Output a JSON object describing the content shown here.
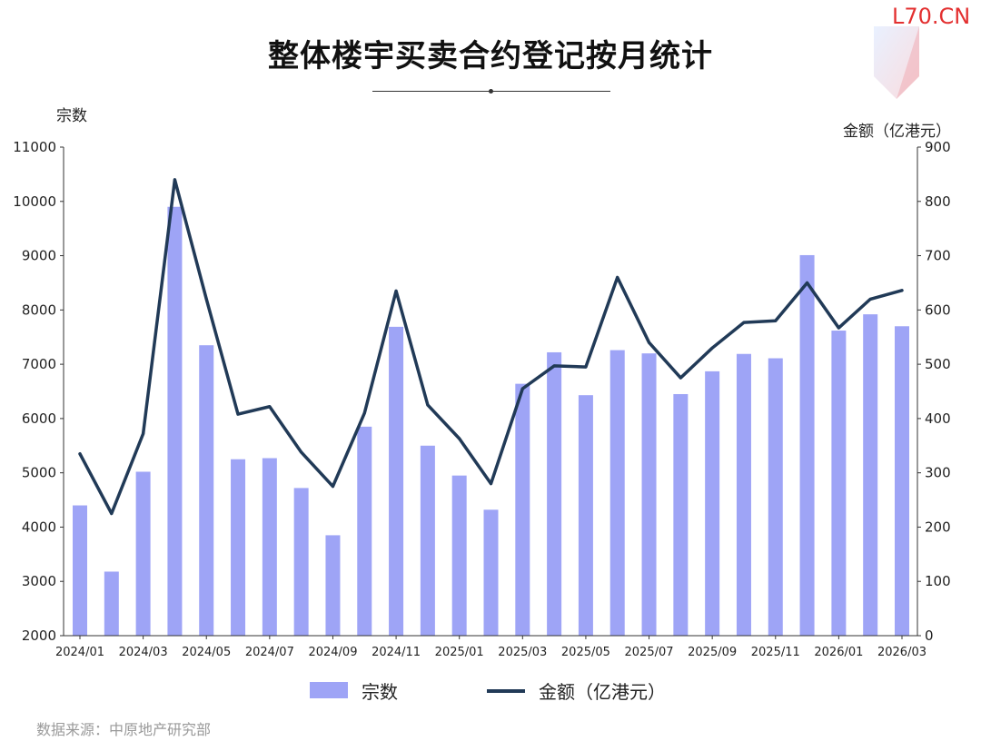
{
  "logo": {
    "text": "L70.CN"
  },
  "chart_data": {
    "type": "bar+line",
    "title": "整体楼宇买卖合约登记按月统计",
    "y_left_label": "宗数",
    "y_right_label": "金额（亿港元）",
    "y_left_range": [
      2000,
      11000
    ],
    "y_right_range": [
      0,
      900
    ],
    "y_left_ticks": [
      "11000",
      "10000",
      "9000",
      "8000",
      "7000",
      "6000",
      "5000",
      "4000",
      "3000",
      "2000"
    ],
    "y_right_ticks": [
      "900",
      "800",
      "700",
      "600",
      "500",
      "400",
      "300",
      "200",
      "100",
      "0"
    ],
    "x_tick_labels": [
      "2024/01",
      "2024/03",
      "2024/05",
      "2024/07",
      "2024/09",
      "2024/11",
      "2025/01",
      "2025/03",
      "2025/05",
      "2025/07",
      "2025/09",
      "2025/11",
      "2026/01",
      "2026/03"
    ],
    "categories": [
      "2024/01",
      "2024/02",
      "2024/03",
      "2024/04",
      "2024/05",
      "2024/06",
      "2024/07",
      "2024/08",
      "2024/09",
      "2024/10",
      "2024/11",
      "2024/12",
      "2025/01",
      "2025/02",
      "2025/03",
      "2025/04",
      "2025/05",
      "2025/06",
      "2025/07",
      "2025/08",
      "2025/09",
      "2025/10",
      "2025/11",
      "2025/12",
      "2026/01",
      "2026/02",
      "2026/03"
    ],
    "series": [
      {
        "name": "宗数",
        "type": "bar",
        "axis": "left",
        "values": [
          4400,
          3180,
          5020,
          9900,
          7350,
          5250,
          5270,
          4720,
          3850,
          5850,
          7690,
          5500,
          4950,
          4320,
          6640,
          7220,
          6430,
          7260,
          7200,
          6450,
          6870,
          7190,
          7110,
          9010,
          7620,
          7920,
          7700
        ]
      },
      {
        "name": "金额（亿港元）",
        "type": "line",
        "axis": "right",
        "values": [
          335,
          225,
          372,
          840,
          620,
          408,
          422,
          338,
          275,
          410,
          635,
          425,
          363,
          280,
          455,
          497,
          495,
          660,
          540,
          475,
          530,
          577,
          580,
          650,
          567,
          620,
          636
        ]
      }
    ],
    "colors": {
      "bar": "#9ea4f6",
      "line": "#213a57"
    },
    "source": "数据来源：中原地产研究部",
    "legend_position": "bottom"
  }
}
